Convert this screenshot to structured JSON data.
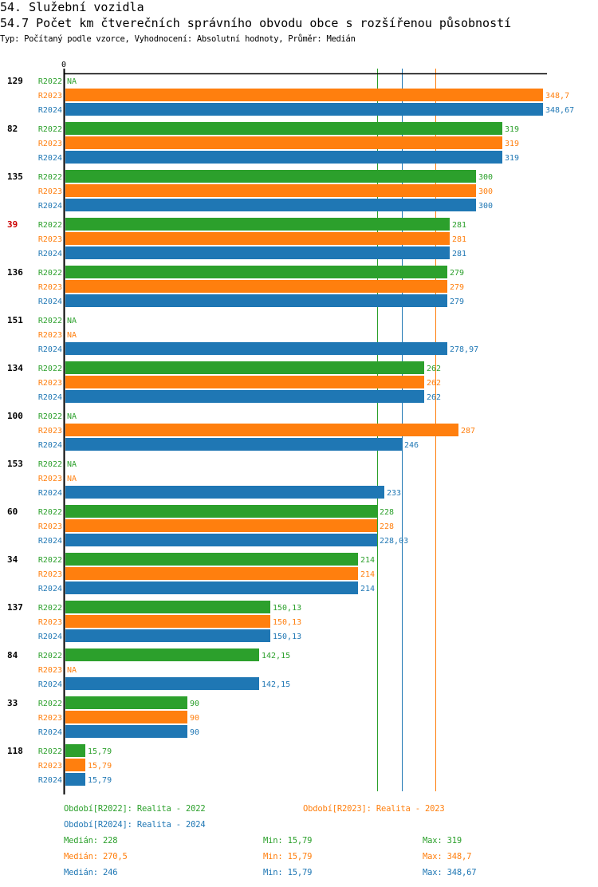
{
  "header": {
    "title": "54. Služební vozidla",
    "subtitle": "54.7 Počet km čtverečních správního obvodu obce s rozšířenou působností",
    "meta": "Typ: Počítaný podle vzorce, Vyhodnocení: Absolutní hodnoty, Průměr: Medián"
  },
  "chart_data": {
    "type": "bar",
    "orientation": "horizontal",
    "title": "54.7 Počet km čtverečních správního obvodu obce s rozšířenou působností",
    "xlabel": "",
    "ylabel": "",
    "xlim": [
      0,
      348.7
    ],
    "x_tick_labels": [
      "0"
    ],
    "grid": false,
    "series_names": [
      "R2022",
      "R2023",
      "R2024"
    ],
    "colors": {
      "R2022": "#2ca02c",
      "R2023": "#ff7f0e",
      "R2024": "#1f77b4"
    },
    "highlight_color": "#cc0000",
    "categories": [
      {
        "label": "129",
        "highlight": false,
        "values": [
          null,
          348.7,
          348.67
        ],
        "labels": [
          "NA",
          "348,7",
          "348,67"
        ]
      },
      {
        "label": "82",
        "highlight": false,
        "values": [
          319,
          319,
          319
        ],
        "labels": [
          "319",
          "319",
          "319"
        ]
      },
      {
        "label": "135",
        "highlight": false,
        "values": [
          300,
          300,
          300
        ],
        "labels": [
          "300",
          "300",
          "300"
        ]
      },
      {
        "label": "39",
        "highlight": true,
        "values": [
          281,
          281,
          281
        ],
        "labels": [
          "281",
          "281",
          "281"
        ]
      },
      {
        "label": "136",
        "highlight": false,
        "values": [
          279,
          279,
          279
        ],
        "labels": [
          "279",
          "279",
          "279"
        ]
      },
      {
        "label": "151",
        "highlight": false,
        "values": [
          null,
          null,
          278.97
        ],
        "labels": [
          "NA",
          "NA",
          "278,97"
        ]
      },
      {
        "label": "134",
        "highlight": false,
        "values": [
          262,
          262,
          262
        ],
        "labels": [
          "262",
          "262",
          "262"
        ]
      },
      {
        "label": "100",
        "highlight": false,
        "values": [
          null,
          287,
          246
        ],
        "labels": [
          "NA",
          "287",
          "246"
        ]
      },
      {
        "label": "153",
        "highlight": false,
        "values": [
          null,
          null,
          233
        ],
        "labels": [
          "NA",
          "NA",
          "233"
        ]
      },
      {
        "label": "60",
        "highlight": false,
        "values": [
          228,
          228,
          228.03
        ],
        "labels": [
          "228",
          "228",
          "228,03"
        ]
      },
      {
        "label": "34",
        "highlight": false,
        "values": [
          214,
          214,
          214
        ],
        "labels": [
          "214",
          "214",
          "214"
        ]
      },
      {
        "label": "137",
        "highlight": false,
        "values": [
          150.13,
          150.13,
          150.13
        ],
        "labels": [
          "150,13",
          "150,13",
          "150,13"
        ]
      },
      {
        "label": "84",
        "highlight": false,
        "values": [
          142.15,
          null,
          142.15
        ],
        "labels": [
          "142,15",
          "NA",
          "142,15"
        ]
      },
      {
        "label": "33",
        "highlight": false,
        "values": [
          90,
          90,
          90
        ],
        "labels": [
          "90",
          "90",
          "90"
        ]
      },
      {
        "label": "118",
        "highlight": false,
        "values": [
          15.79,
          15.79,
          15.79
        ],
        "labels": [
          "15,79",
          "15,79",
          "15,79"
        ]
      }
    ],
    "medians": [
      {
        "series": "R2022",
        "value": 228
      },
      {
        "series": "R2023",
        "value": 270.5
      },
      {
        "series": "R2024",
        "value": 246
      }
    ],
    "legend": {
      "placement": "bottom",
      "entries": [
        {
          "series": "R2022",
          "text": "Období[R2022]: Realita - 2022"
        },
        {
          "series": "R2023",
          "text": "Období[R2023]: Realita - 2023"
        },
        {
          "series": "R2024",
          "text": "Období[R2024]: Realita - 2024"
        }
      ]
    },
    "stats": [
      {
        "series": "R2022",
        "median": "Medián: 228",
        "min": "Min: 15,79",
        "max": "Max: 319"
      },
      {
        "series": "R2023",
        "median": "Medián: 270,5",
        "min": "Min: 15,79",
        "max": "Max: 348,7"
      },
      {
        "series": "R2024",
        "median": "Medián: 246",
        "min": "Min: 15,79",
        "max": "Max: 348,67"
      }
    ]
  }
}
